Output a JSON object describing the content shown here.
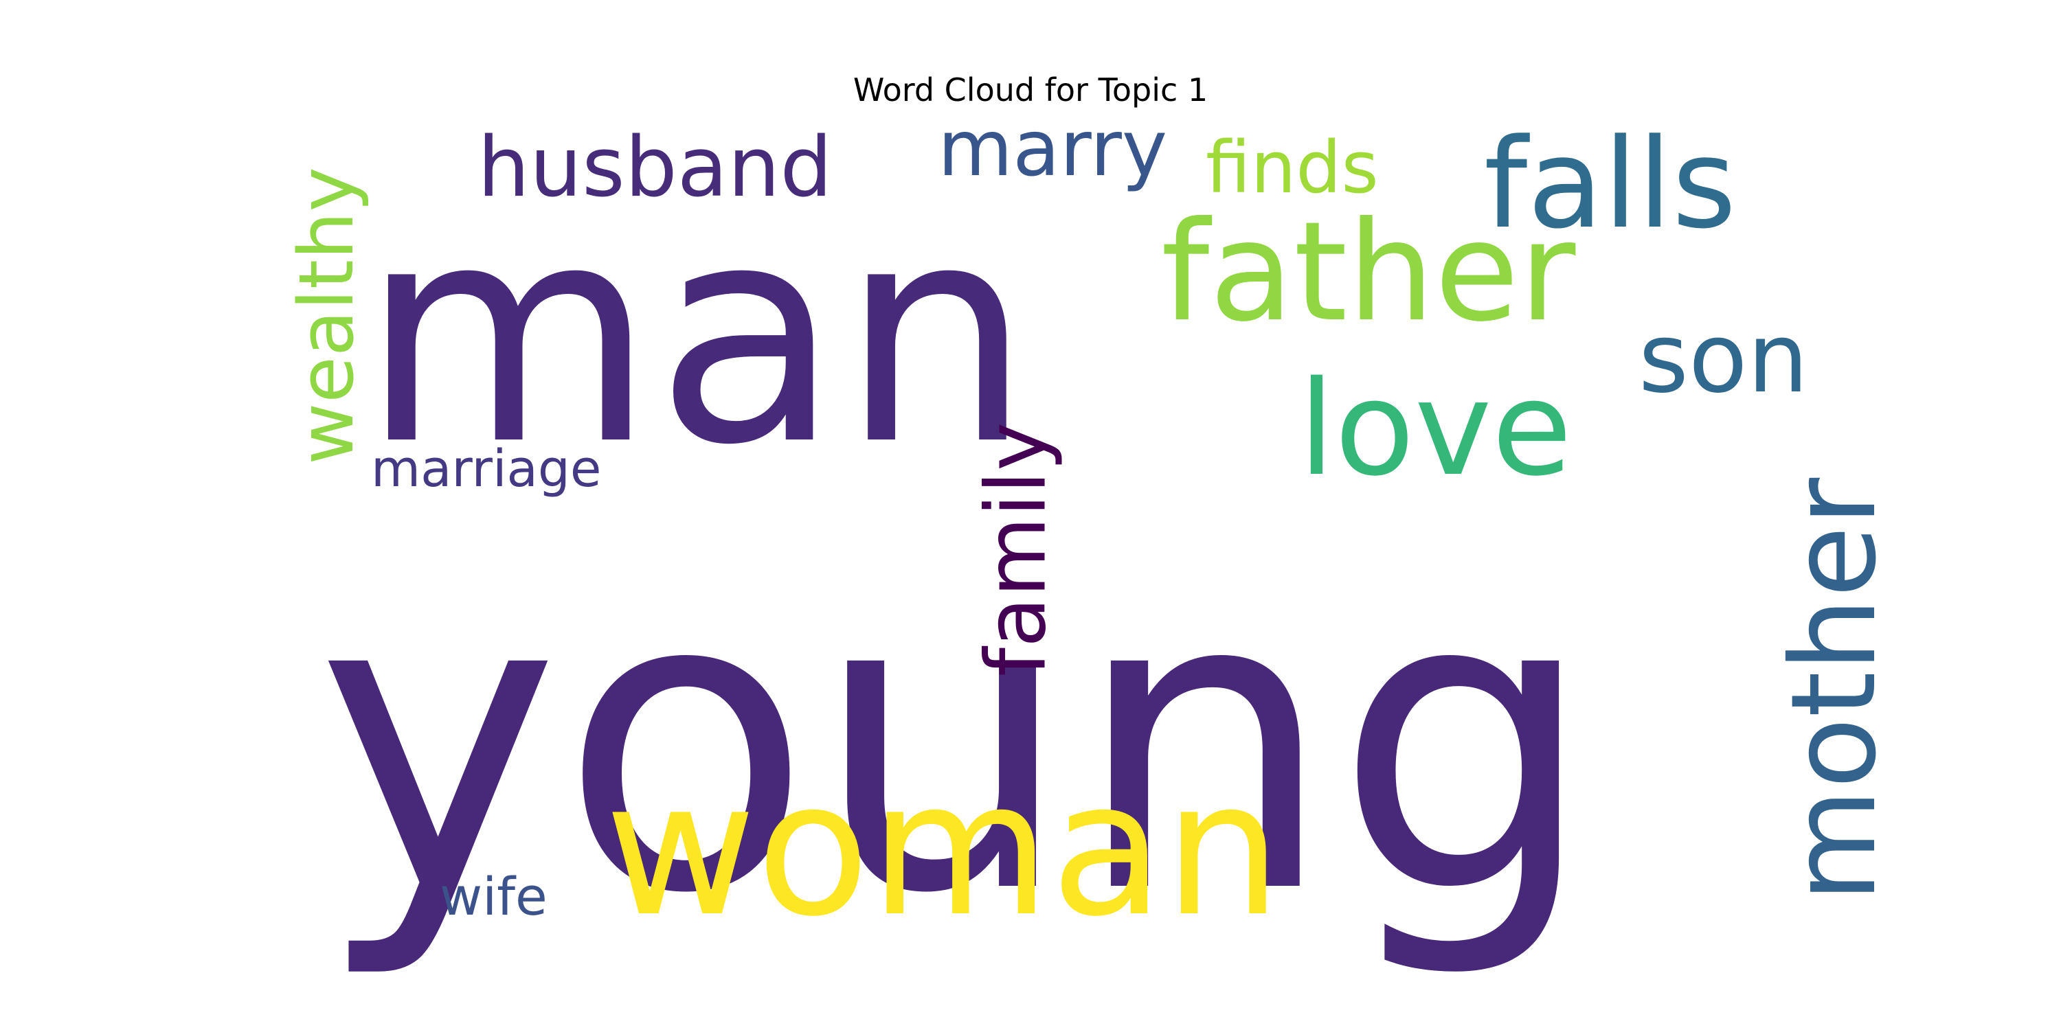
{
  "chart_data": {
    "type": "wordcloud",
    "title": "Word Cloud for Topic 1",
    "colormap": "viridis",
    "words": [
      {
        "text": "young",
        "color": "#482878"
      },
      {
        "text": "man",
        "color": "#472a7a"
      },
      {
        "text": "woman",
        "color": "#fde725"
      },
      {
        "text": "father",
        "color": "#90d743"
      },
      {
        "text": "love",
        "color": "#35b779"
      },
      {
        "text": "falls",
        "color": "#2f6c8e"
      },
      {
        "text": "son",
        "color": "#31688e"
      },
      {
        "text": "mother",
        "color": "#33638d"
      },
      {
        "text": "family",
        "color": "#440154"
      },
      {
        "text": "husband",
        "color": "#472c7a"
      },
      {
        "text": "marry",
        "color": "#39568c"
      },
      {
        "text": "wealthy",
        "color": "#8fd744"
      },
      {
        "text": "finds",
        "color": "#a0da39"
      },
      {
        "text": "marriage",
        "color": "#443983"
      },
      {
        "text": "wife",
        "color": "#3b528b"
      }
    ]
  }
}
